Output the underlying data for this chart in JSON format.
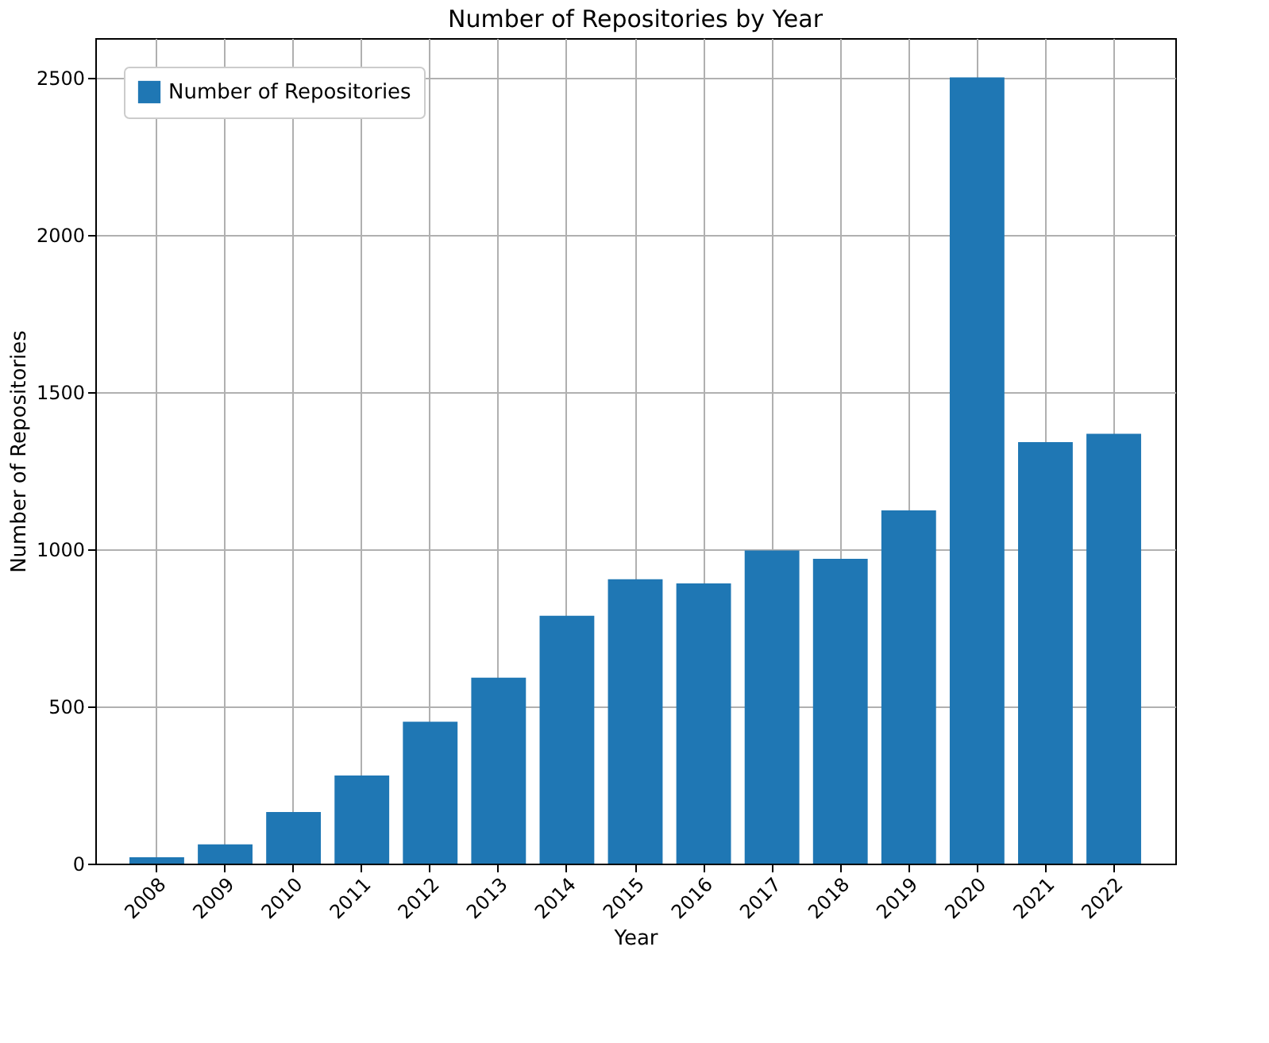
{
  "chart_data": {
    "type": "bar",
    "title": "Number of Repositories by Year",
    "xlabel": "Year",
    "ylabel": "Number of Repositories",
    "categories": [
      "2008",
      "2009",
      "2010",
      "2011",
      "2012",
      "2013",
      "2014",
      "2015",
      "2016",
      "2017",
      "2018",
      "2019",
      "2020",
      "2021",
      "2022"
    ],
    "series": [
      {
        "name": "Number of Repositories",
        "color": "#1f77b4",
        "values": [
          20,
          61,
          164,
          280,
          451,
          591,
          788,
          904,
          891,
          996,
          969,
          1123,
          2500,
          1340,
          1367
        ]
      }
    ],
    "ylim": [
      0,
      2625
    ],
    "yticks": [
      0,
      500,
      1000,
      1500,
      2000,
      2500
    ],
    "grid": true,
    "legend": "top left"
  }
}
